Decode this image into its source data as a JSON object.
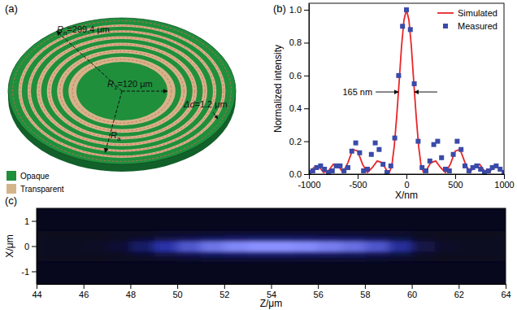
{
  "diagram": {
    "title": "(a)",
    "annotations": [
      {
        "symbol": "R",
        "sub": "n",
        "text": "=299.4 μm"
      },
      {
        "symbol": "R",
        "sub": "1",
        "text": "=120 μm"
      },
      {
        "symbol": "Δd",
        "text": "=1.2 μm"
      },
      {
        "symbol": "R",
        "sub": "a"
      }
    ],
    "legend": [
      {
        "name": "Opaque",
        "color": "#1f8f3c"
      },
      {
        "name": "Transparent",
        "color": "#d4b48a"
      }
    ]
  },
  "chart_data": [
    {
      "type": "line",
      "title": "(b)",
      "x_label": "X/nm",
      "y_label": "Normalized intensity",
      "xlim": [
        -1000,
        1000
      ],
      "xticks": [
        -1000,
        -500,
        0,
        500,
        1000
      ],
      "ylim": [
        0,
        1.04
      ],
      "yticks": [
        {
          "value": 0,
          "label": "0.0"
        },
        {
          "value": 0.2,
          "label": "0.2"
        },
        {
          "value": 0.4,
          "label": "0.4"
        },
        {
          "value": 0.6,
          "label": "0.6"
        },
        {
          "value": 0.8,
          "label": "0.8"
        },
        {
          "value": 1,
          "label": "1.0"
        }
      ],
      "legend": "upper right",
      "series": [
        {
          "name": "Simulated",
          "type": "line",
          "color": "#e8262a",
          "x": [
            -1000,
            -950,
            -900,
            -850,
            -800,
            -750,
            -700,
            -650,
            -600,
            -550,
            -500,
            -450,
            -400,
            -350,
            -300,
            -250,
            -200,
            -175,
            -150,
            -125,
            -100,
            -75,
            -50,
            -25,
            0,
            25,
            50,
            75,
            100,
            125,
            150,
            175,
            200,
            250,
            300,
            350,
            400,
            450,
            500,
            550,
            600,
            650,
            700,
            750,
            800,
            850,
            900,
            950,
            1000
          ],
          "values": [
            0.01,
            0.04,
            0.05,
            0.01,
            0.02,
            0.06,
            0.05,
            0.01,
            0.07,
            0.15,
            0.14,
            0.06,
            0.01,
            0.04,
            0.08,
            0.07,
            0.02,
            0.01,
            0.05,
            0.17,
            0.35,
            0.56,
            0.78,
            0.94,
            1.0,
            0.94,
            0.78,
            0.56,
            0.35,
            0.17,
            0.05,
            0.01,
            0.02,
            0.07,
            0.08,
            0.04,
            0.01,
            0.06,
            0.14,
            0.15,
            0.07,
            0.01,
            0.05,
            0.06,
            0.02,
            0.01,
            0.05,
            0.04,
            0.01
          ]
        },
        {
          "name": "Measured",
          "type": "scatter",
          "marker": "square",
          "color": "#3a4aa8",
          "x": [
            -1000,
            -960,
            -920,
            -880,
            -840,
            -800,
            -760,
            -720,
            -680,
            -640,
            -600,
            -560,
            -520,
            -480,
            -440,
            -400,
            -360,
            -320,
            -280,
            -240,
            -200,
            -160,
            -120,
            -80,
            -40,
            0,
            40,
            80,
            120,
            160,
            200,
            240,
            280,
            320,
            360,
            400,
            440,
            480,
            520,
            560,
            600,
            640,
            680,
            720,
            760,
            800,
            840,
            880,
            920,
            960,
            1000
          ],
          "values": [
            0.01,
            0.02,
            0.04,
            0.05,
            0.03,
            0.01,
            0.02,
            0.05,
            0.05,
            0.02,
            0.04,
            0.14,
            0.19,
            0.13,
            0.02,
            0.03,
            0.12,
            0.19,
            0.15,
            0.06,
            0.01,
            0.05,
            0.22,
            0.6,
            0.9,
            1.0,
            0.88,
            0.55,
            0.2,
            0.04,
            0.02,
            0.08,
            0.18,
            0.2,
            0.1,
            0.03,
            0.02,
            0.12,
            0.2,
            0.15,
            0.05,
            0.02,
            0.04,
            0.05,
            0.03,
            0.01,
            0.02,
            0.04,
            0.05,
            0.03,
            0.01
          ]
        }
      ],
      "annotations": [
        {
          "text": "165 nm",
          "x": [
            -82.5,
            82.5
          ],
          "y": 0.5
        }
      ]
    },
    {
      "type": "heatmap",
      "title": "(c)",
      "x_label": "Z/μm",
      "y_label": "X/μm",
      "xlim": [
        44,
        64
      ],
      "xticks": [
        44,
        46,
        48,
        50,
        52,
        54,
        56,
        58,
        60,
        62,
        64
      ],
      "ylim": [
        -1.5,
        1.5
      ],
      "yticks": [
        -1,
        0,
        1
      ],
      "zlim": [
        0,
        1
      ],
      "x": [
        44.5,
        45.5,
        46.5,
        47.5,
        48.5,
        49.5,
        50.5,
        51.5,
        52.5,
        53.5,
        54.5,
        55.5,
        56.5,
        57.5,
        58.5,
        59.5,
        60.5,
        61.5,
        62.5,
        63.5
      ],
      "y": [
        -0.5,
        -0.3,
        -0.1,
        0.1,
        0.3,
        0.5
      ],
      "cells": [
        [
          0,
          0,
          0,
          0.01,
          0.02,
          0.04,
          0.06,
          0.07,
          0.08,
          0.08,
          0.08,
          0.08,
          0.07,
          0.07,
          0.06,
          0.04,
          0.01,
          0,
          0,
          0
        ],
        [
          0.01,
          0.01,
          0.01,
          0.02,
          0.08,
          0.15,
          0.21,
          0.26,
          0.29,
          0.3,
          0.3,
          0.29,
          0.27,
          0.25,
          0.21,
          0.14,
          0.05,
          0.01,
          0.01,
          0.01
        ],
        [
          0.02,
          0.02,
          0.03,
          0.08,
          0.25,
          0.5,
          0.7,
          0.85,
          0.95,
          1.0,
          1.0,
          0.97,
          0.9,
          0.82,
          0.7,
          0.45,
          0.15,
          0.04,
          0.02,
          0.02
        ],
        [
          0.02,
          0.02,
          0.03,
          0.08,
          0.25,
          0.5,
          0.7,
          0.85,
          0.95,
          1.0,
          1.0,
          0.97,
          0.9,
          0.82,
          0.7,
          0.45,
          0.15,
          0.04,
          0.02,
          0.02
        ],
        [
          0.01,
          0.01,
          0.01,
          0.02,
          0.08,
          0.15,
          0.21,
          0.26,
          0.29,
          0.3,
          0.3,
          0.29,
          0.27,
          0.25,
          0.21,
          0.14,
          0.05,
          0.01,
          0.01,
          0.01
        ],
        [
          0,
          0,
          0,
          0.01,
          0.02,
          0.04,
          0.06,
          0.07,
          0.08,
          0.08,
          0.08,
          0.08,
          0.07,
          0.07,
          0.06,
          0.04,
          0.01,
          0,
          0,
          0
        ]
      ]
    }
  ]
}
